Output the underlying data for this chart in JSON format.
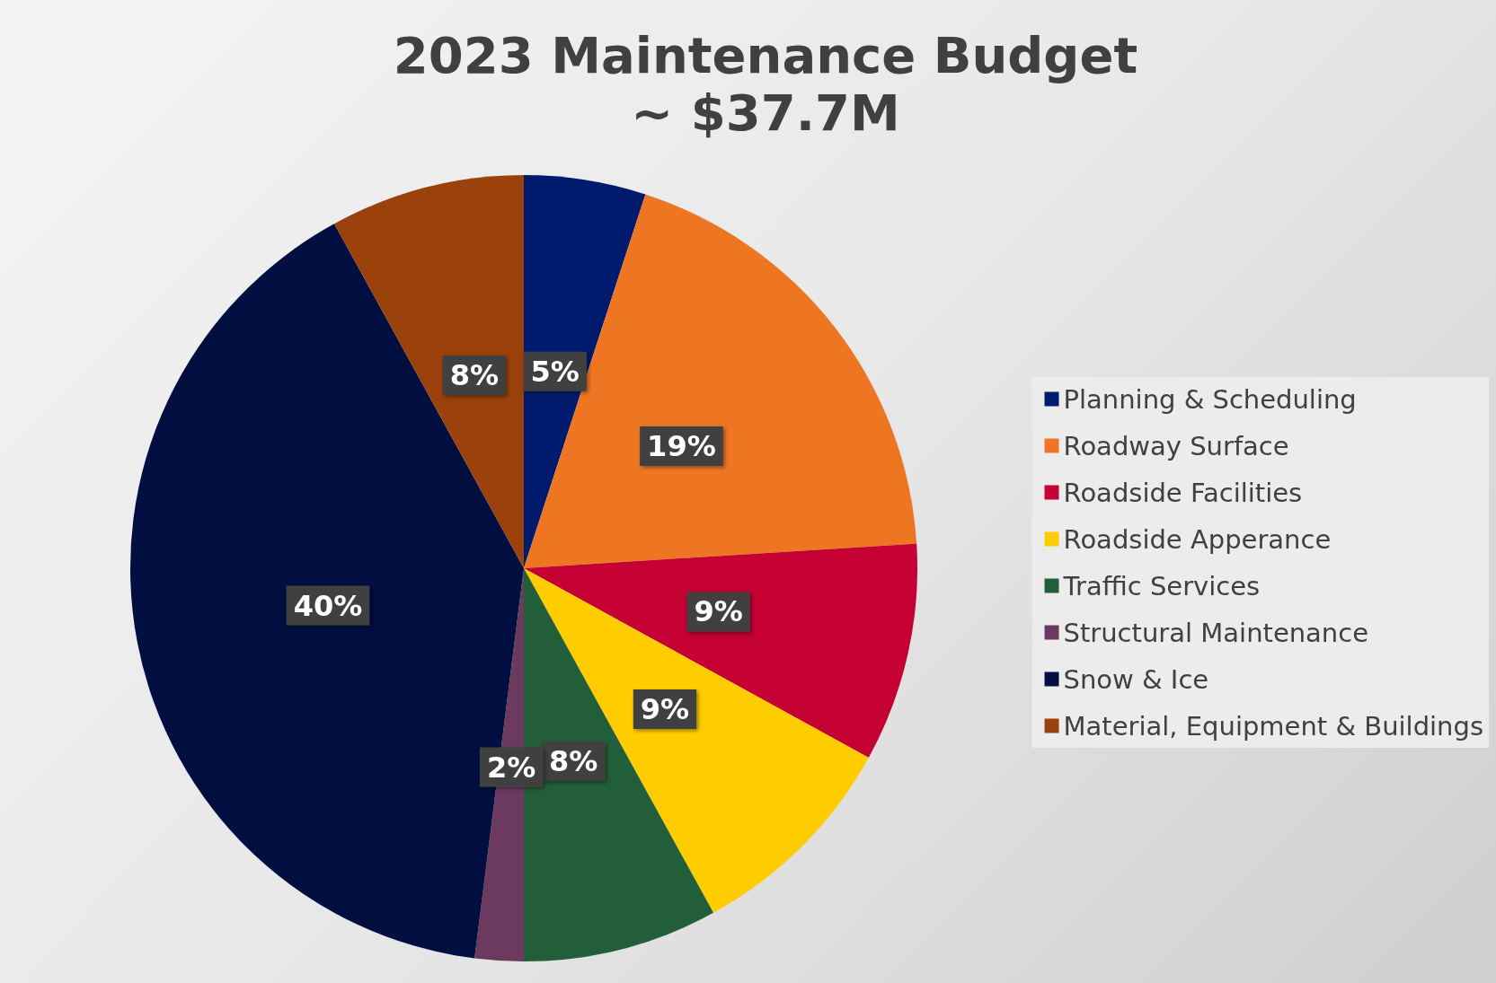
{
  "chart_data": {
    "type": "pie",
    "title": "2023 Maintenance Budget",
    "subtitle": "~ $37.7M",
    "categories": [
      "Planning & Scheduling",
      "Roadway Surface",
      "Roadside Facilities",
      "Roadside Apperance",
      "Traffic Services",
      "Structural Maintenance",
      "Snow & Ice",
      "Material, Equipment & Buildings"
    ],
    "values": [
      5,
      19,
      9,
      9,
      8,
      2,
      40,
      8
    ],
    "colors": [
      "#001a6e",
      "#ee7623",
      "#c50032",
      "#ffcc00",
      "#235e3a",
      "#6b3a5e",
      "#000e40",
      "#9a410c"
    ],
    "value_labels": [
      "5%",
      "19%",
      "9%",
      "9%",
      "8%",
      "2%",
      "40%",
      "8%"
    ],
    "legend": "right"
  }
}
